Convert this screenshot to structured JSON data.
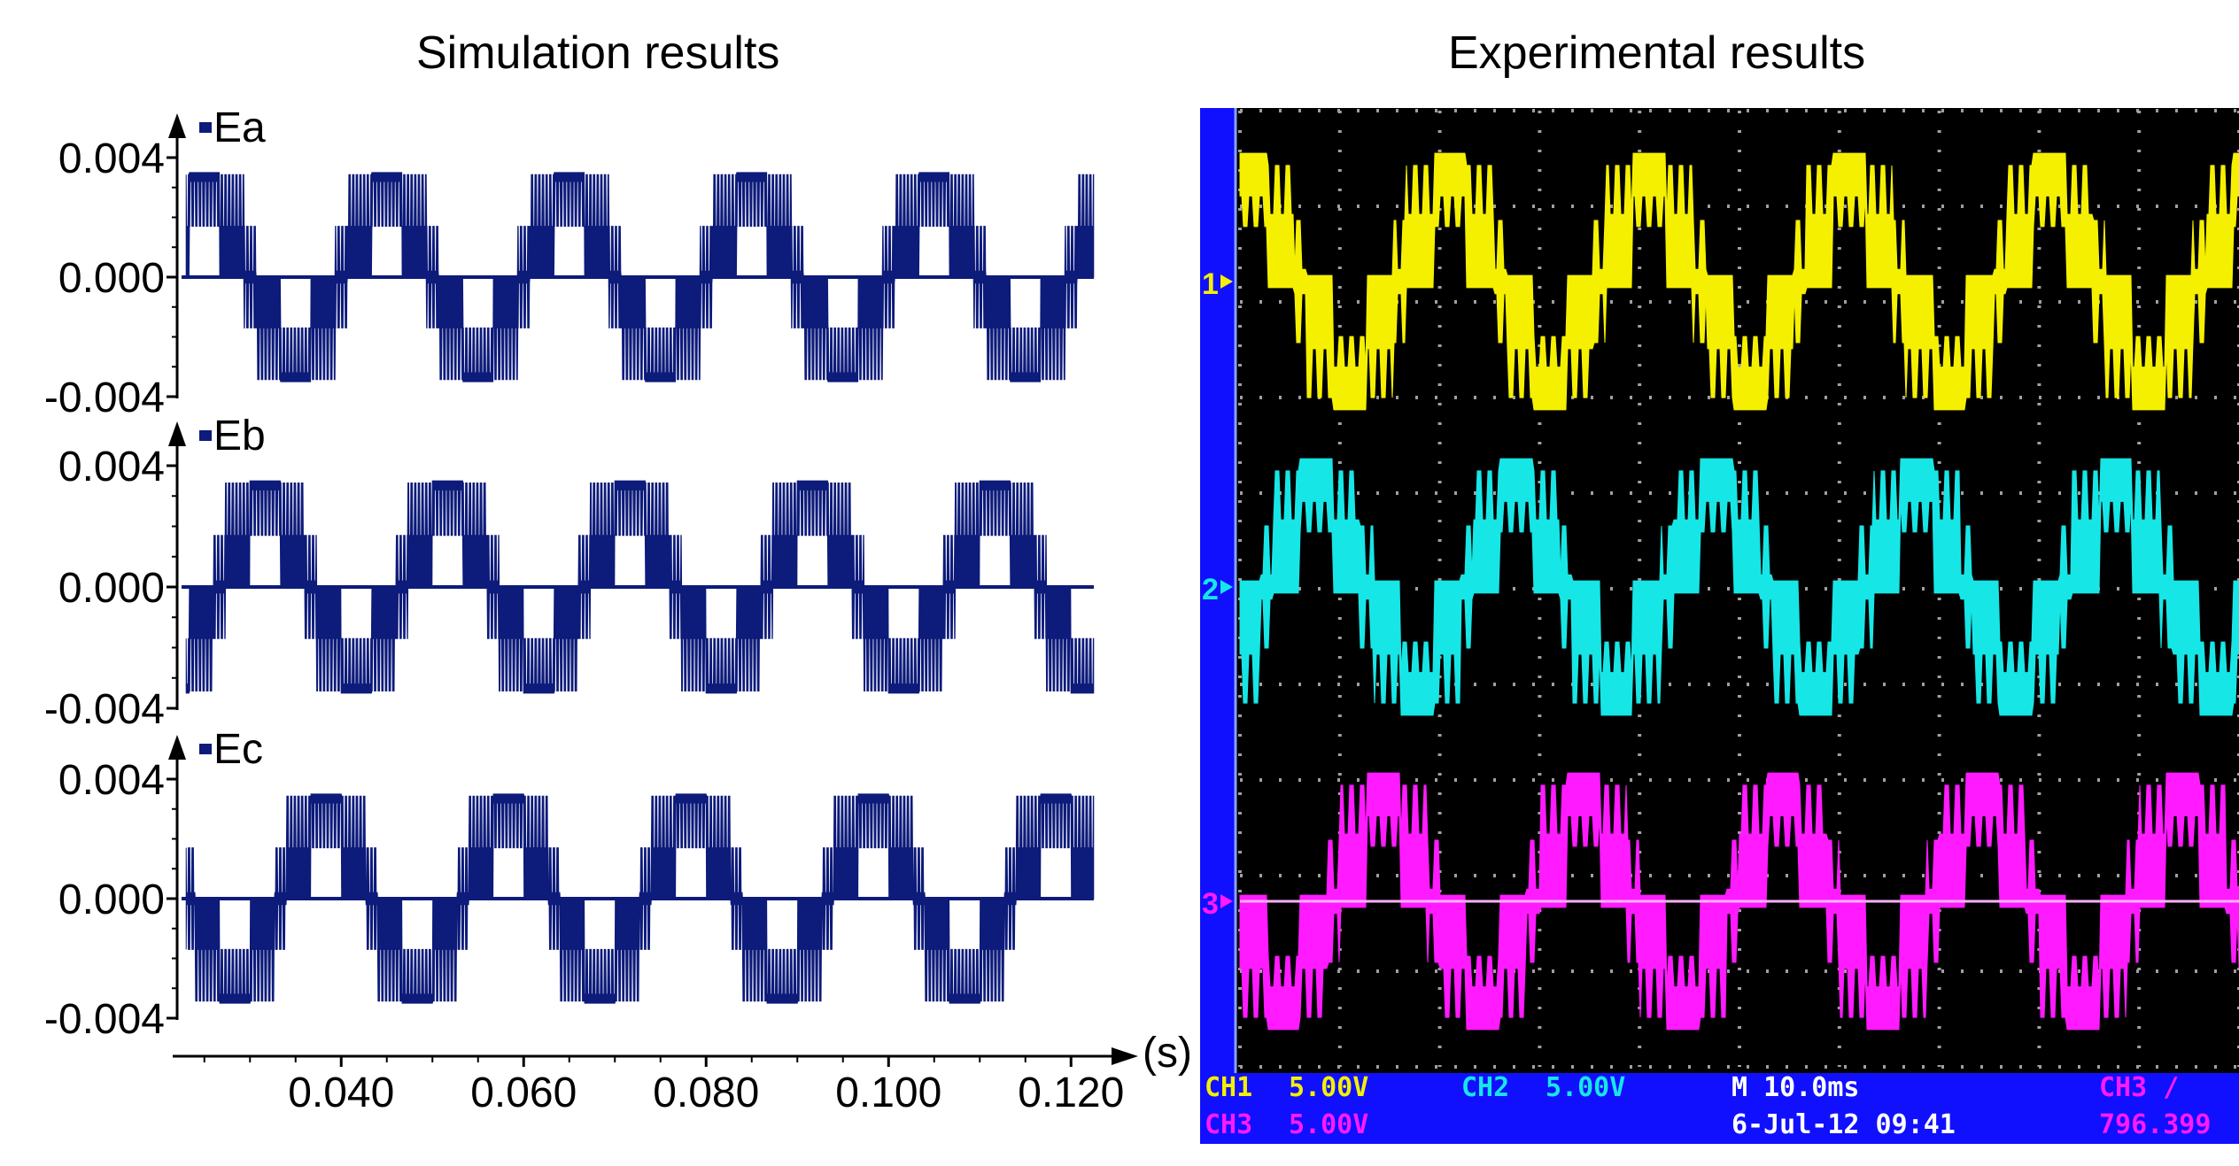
{
  "titles": {
    "simulation": "Simulation results",
    "experimental": "Experimental results"
  },
  "chart_data": [
    {
      "type": "line",
      "title": "Simulation results",
      "xlabel": "(s)",
      "x_ticks": [
        "0.040",
        "0.060",
        "0.080",
        "0.100",
        "0.120"
      ],
      "x_tick_values": [
        0.04,
        0.06,
        0.08,
        0.1,
        0.12
      ],
      "xlim": [
        0.0225,
        0.1225
      ],
      "ylim": [
        -0.004,
        0.004
      ],
      "y_ticks": [
        "0.004",
        "0.000",
        "-0.004"
      ],
      "fundamental_frequency_hz": 50,
      "levels": [
        -0.0035,
        -0.0017,
        0.0,
        0.0017,
        0.0035
      ],
      "series": [
        {
          "name": "Ea",
          "phase_deg": 0,
          "color": "#0d1b7a"
        },
        {
          "name": "Eb",
          "phase_deg": -120,
          "color": "#0d1b7a"
        },
        {
          "name": "Ec",
          "phase_deg": 120,
          "color": "#0d1b7a"
        }
      ]
    },
    {
      "type": "line",
      "title": "Experimental results",
      "background": "#000000",
      "frame_color": "#1010ff",
      "series": [
        {
          "name": "CH1",
          "marker": "1",
          "color": "#f5f000",
          "phase_deg": 0
        },
        {
          "name": "CH2",
          "marker": "2",
          "color": "#17e6e6",
          "phase_deg": -120
        },
        {
          "name": "CH3",
          "marker": "3",
          "color": "#ff1aff",
          "phase_deg": 120
        }
      ],
      "status": {
        "ch1": "CH1",
        "ch1_scale": "5.00V",
        "ch2": "CH2",
        "ch2_scale": "5.00V",
        "ch3a": "CH3",
        "ch3a_scale": "5.00V",
        "timebase": "M 10.0ms",
        "datetime": "6-Jul-12 09:41",
        "trigger": "CH3 ∕",
        "freq": "796.399"
      }
    }
  ]
}
